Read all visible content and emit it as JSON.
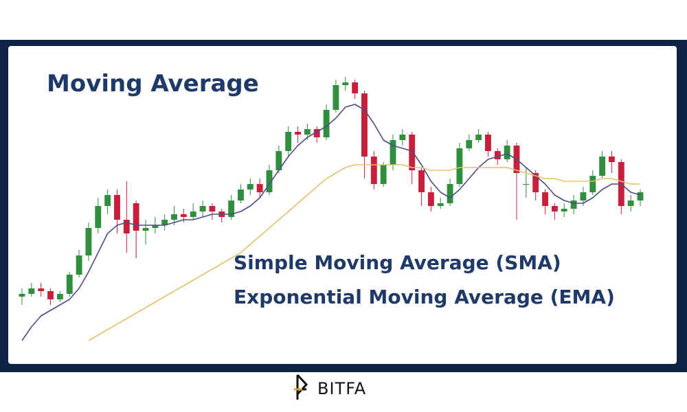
{
  "chart_data": {
    "type": "candlestick",
    "title": "Moving Average",
    "annotations": [
      "Simple Moving Average (SMA)",
      "Exponential Moving Average (EMA)"
    ],
    "open": [
      17,
      18,
      20,
      19,
      16,
      18,
      25,
      32,
      42,
      50,
      54,
      45,
      51,
      41,
      42,
      43,
      45,
      47,
      46,
      48,
      50,
      48,
      46,
      52,
      56,
      58,
      55,
      63,
      70,
      77,
      76,
      78,
      75,
      85,
      94,
      95,
      91,
      68,
      58,
      65,
      74,
      76,
      63,
      55,
      50,
      51,
      58,
      71,
      74,
      76,
      70,
      67,
      72,
      58,
      62,
      55,
      50,
      48,
      49,
      52,
      55,
      61,
      68,
      66,
      50,
      52
    ],
    "high": [
      20,
      22,
      22,
      20,
      19,
      26,
      34,
      44,
      53,
      56,
      56,
      59,
      52,
      45,
      46,
      47,
      50,
      49,
      51,
      52,
      51,
      49,
      54,
      58,
      60,
      60,
      65,
      72,
      79,
      79,
      80,
      79,
      87,
      96,
      97,
      96,
      92,
      70,
      66,
      76,
      78,
      77,
      64,
      57,
      53,
      60,
      73,
      76,
      78,
      77,
      71,
      74,
      73,
      64,
      63,
      56,
      51,
      51,
      54,
      57,
      63,
      70,
      70,
      67,
      54,
      56
    ],
    "low": [
      14,
      17,
      17,
      14,
      15,
      17,
      24,
      30,
      40,
      47,
      40,
      33,
      31,
      36,
      40,
      41,
      43,
      44,
      45,
      46,
      45,
      44,
      45,
      51,
      54,
      53,
      54,
      62,
      68,
      73,
      74,
      73,
      74,
      84,
      92,
      89,
      60,
      56,
      57,
      63,
      72,
      58,
      50,
      48,
      49,
      50,
      57,
      70,
      73,
      68,
      65,
      66,
      45,
      53,
      52,
      47,
      45,
      46,
      47,
      50,
      54,
      60,
      62,
      47,
      48,
      50
    ],
    "close": [
      18,
      20,
      19,
      16,
      18,
      25,
      32,
      42,
      50,
      54,
      45,
      40,
      41,
      42,
      43,
      45,
      47,
      46,
      48,
      50,
      48,
      46,
      52,
      56,
      58,
      55,
      63,
      70,
      77,
      76,
      78,
      75,
      85,
      94,
      95,
      91,
      68,
      58,
      65,
      74,
      76,
      63,
      55,
      50,
      51,
      58,
      71,
      74,
      76,
      70,
      67,
      72,
      62,
      58,
      55,
      50,
      48,
      49,
      52,
      55,
      61,
      68,
      66,
      50,
      52,
      55
    ],
    "up_color": "#2f8f3f",
    "down_color": "#c8203c",
    "lines": [
      {
        "color": "#4a4c86",
        "values": [
          1,
          6,
          10,
          12,
          14,
          16,
          20,
          26,
          33,
          40,
          43,
          44,
          43,
          43,
          43,
          43,
          44,
          45,
          45,
          46,
          47,
          47,
          47,
          48,
          50,
          53,
          58,
          63,
          68,
          72,
          75,
          77,
          79,
          82,
          86,
          87,
          85,
          80,
          74,
          72,
          71,
          70,
          65,
          59,
          55,
          53,
          56,
          60,
          64,
          67,
          68,
          69,
          67,
          64,
          61,
          58,
          54,
          52,
          51,
          51,
          53,
          56,
          58,
          58,
          55,
          54
        ]
      },
      {
        "color": "#e6c06a",
        "values": [
          null,
          null,
          null,
          null,
          null,
          null,
          null,
          1,
          3,
          5,
          7,
          9,
          11,
          13,
          15,
          17,
          19,
          21,
          23,
          25,
          27,
          29,
          31,
          33,
          36,
          39,
          42,
          45,
          48,
          51,
          54,
          57,
          60,
          62,
          64,
          65,
          65,
          65,
          65,
          65,
          65,
          64,
          64,
          63,
          63,
          63,
          64,
          64,
          64,
          64,
          64,
          64,
          63,
          62,
          61,
          60,
          60,
          59,
          59,
          59,
          59,
          60,
          60,
          59,
          58,
          58
        ]
      }
    ],
    "ylim": [
      0,
      100
    ]
  },
  "brand": "BITFA"
}
